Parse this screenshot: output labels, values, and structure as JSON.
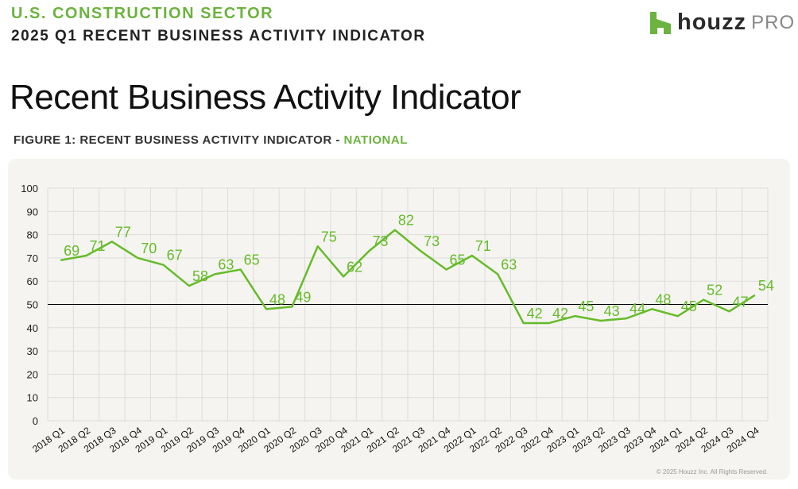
{
  "header": {
    "sector": "U.S. CONSTRUCTION SECTOR",
    "subtitle": "2025 Q1 RECENT BUSINESS ACTIVITY INDICATOR",
    "logo_word": "houzz",
    "logo_pro": "PRO"
  },
  "page_title": "Recent Business Activity Indicator",
  "figure_label": "FIGURE 1: RECENT BUSINESS ACTIVITY INDICATOR - ",
  "figure_label_highlight": "NATIONAL",
  "copyright": "© 2025 Houzz Inc. All Rights Reserved.",
  "colors": {
    "accent": "#6cb33f",
    "line": "#66bb2a"
  },
  "chart_data": {
    "type": "line",
    "title": "",
    "xlabel": "",
    "ylabel": "",
    "ylim": [
      0,
      100
    ],
    "yticks": [
      0,
      10,
      20,
      30,
      40,
      50,
      60,
      70,
      80,
      90,
      100
    ],
    "grid": true,
    "reference_line": 50,
    "categories": [
      "2018 Q1",
      "2018 Q2",
      "2018 Q3",
      "2018 Q4",
      "2019 Q1",
      "2019 Q2",
      "2019 Q3",
      "2019 Q4",
      "2020 Q1",
      "2020 Q2",
      "2020 Q3",
      "2020 Q4",
      "2021 Q1",
      "2021 Q2",
      "2021 Q3",
      "2021 Q4",
      "2022 Q1",
      "2022 Q2",
      "2022 Q3",
      "2022 Q4",
      "2023 Q1",
      "2023 Q2",
      "2023 Q3",
      "2023 Q4",
      "2024 Q1",
      "2024 Q2",
      "2024 Q3",
      "2024 Q4"
    ],
    "series": [
      {
        "name": "National",
        "values": [
          69,
          71,
          77,
          70,
          67,
          58,
          63,
          65,
          48,
          49,
          75,
          62,
          73,
          82,
          73,
          65,
          71,
          63,
          42,
          42,
          45,
          43,
          44,
          48,
          45,
          52,
          47,
          54
        ]
      }
    ]
  }
}
